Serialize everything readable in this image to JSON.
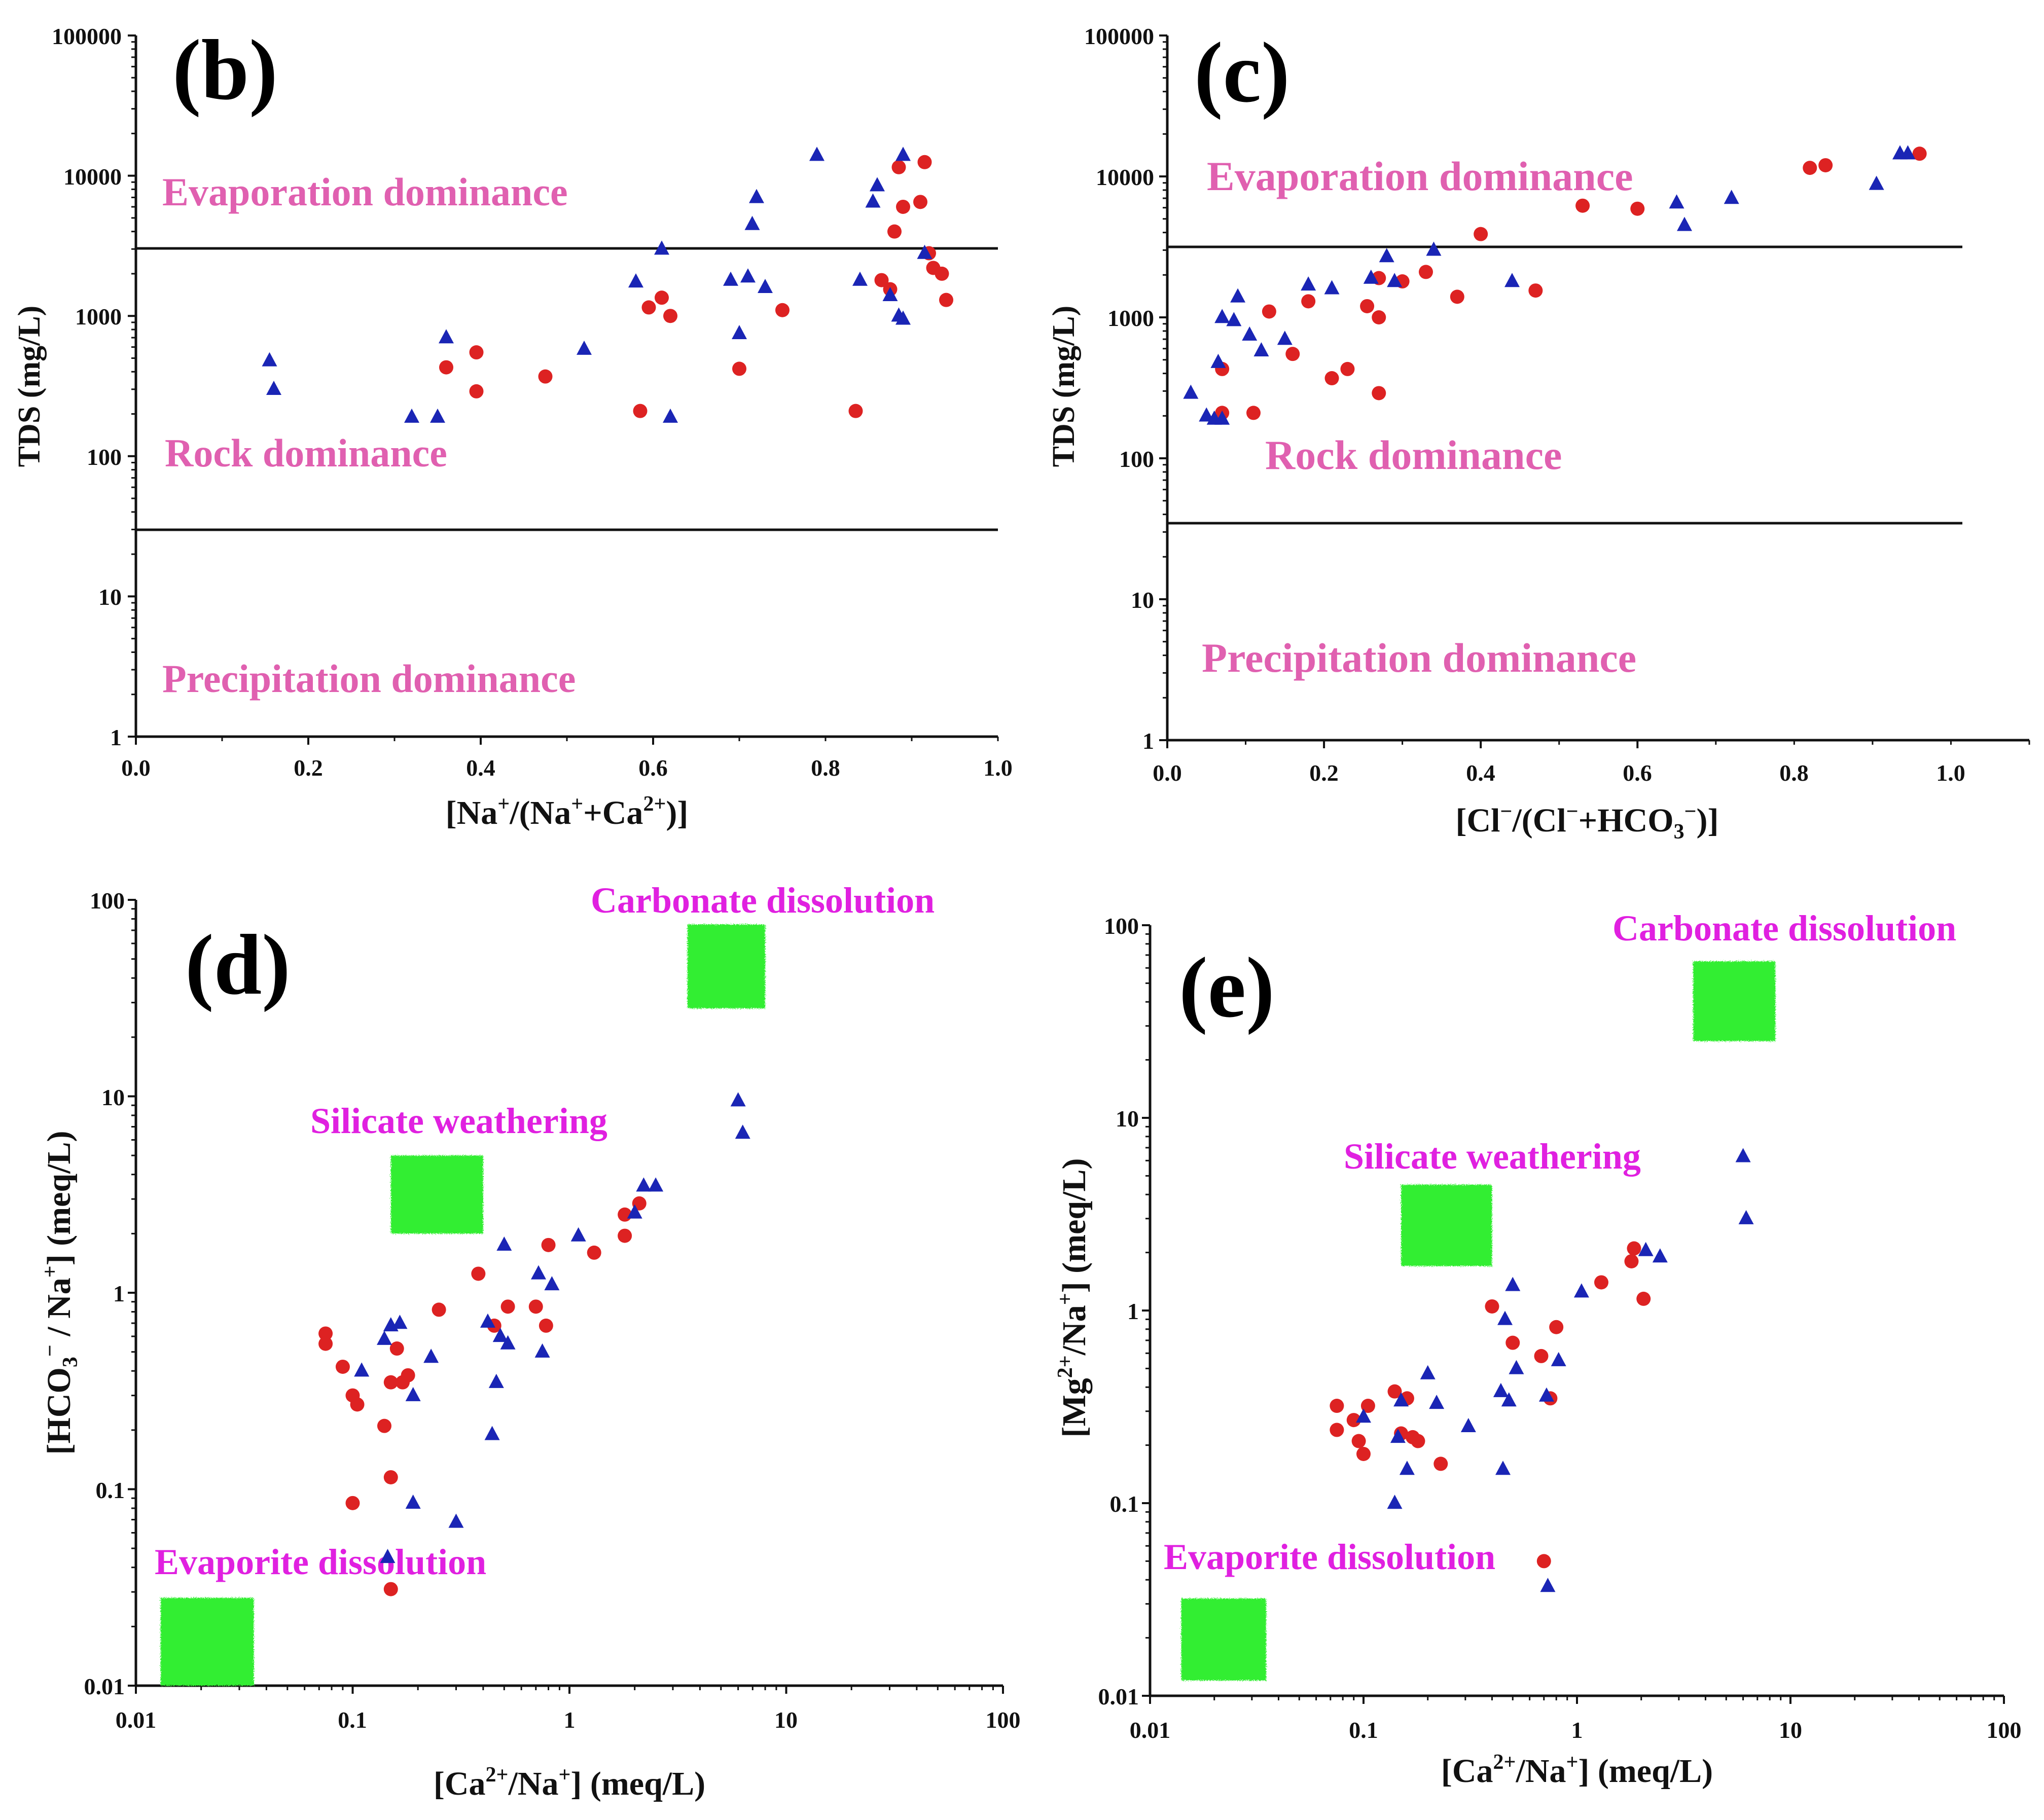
{
  "colors": {
    "region_text_b": "#e060b0",
    "region_text_d": "#e020e0",
    "series_red": "#dd2222",
    "series_blue": "#1a25b5",
    "green_box": "#33ee33",
    "axis": "#111111"
  },
  "chart_data": [
    {
      "id": "b",
      "type": "scatter",
      "panel_letter": "(b)",
      "xlabel": "[Na+/(Na++Ca2+)]",
      "ylabel": "TDS (mg/L)",
      "xscale": "linear",
      "yscale": "log",
      "xlim": [
        0,
        1
      ],
      "ylim": [
        1,
        100000
      ],
      "xticks": [
        "0.0",
        "0.2",
        "0.4",
        "0.6",
        "0.8",
        "1.0"
      ],
      "yticks": [
        "1",
        "10",
        "100",
        "1000",
        "10000",
        "100000"
      ],
      "hlines": [
        3000,
        30
      ],
      "regions": [
        "Evaporation dominance",
        "Rock dominance",
        "Precipitation dominance"
      ],
      "series": [
        {
          "name": "red",
          "marker": "circle",
          "points": [
            [
              0.36,
              430
            ],
            [
              0.395,
              550
            ],
            [
              0.395,
              290
            ],
            [
              0.475,
              370
            ],
            [
              0.585,
              210
            ],
            [
              0.595,
              1150
            ],
            [
              0.61,
              1350
            ],
            [
              0.62,
              1000
            ],
            [
              0.7,
              420
            ],
            [
              0.75,
              1100
            ],
            [
              0.835,
              210
            ],
            [
              0.865,
              1800
            ],
            [
              0.875,
              1550
            ],
            [
              0.88,
              4000
            ],
            [
              0.885,
              11500
            ],
            [
              0.89,
              6000
            ],
            [
              0.91,
              6500
            ],
            [
              0.915,
              12500
            ],
            [
              0.92,
              2800
            ],
            [
              0.925,
              2200
            ],
            [
              0.935,
              2000
            ],
            [
              0.94,
              1300
            ]
          ]
        },
        {
          "name": "blue",
          "marker": "triangle",
          "points": [
            [
              0.155,
              480
            ],
            [
              0.16,
              300
            ],
            [
              0.32,
              190
            ],
            [
              0.35,
              190
            ],
            [
              0.36,
              700
            ],
            [
              0.52,
              580
            ],
            [
              0.58,
              1750
            ],
            [
              0.61,
              3000
            ],
            [
              0.62,
              190
            ],
            [
              0.69,
              1800
            ],
            [
              0.7,
              750
            ],
            [
              0.71,
              1900
            ],
            [
              0.715,
              4500
            ],
            [
              0.72,
              7000
            ],
            [
              0.73,
              1600
            ],
            [
              0.79,
              14000
            ],
            [
              0.84,
              1800
            ],
            [
              0.855,
              6500
            ],
            [
              0.86,
              8500
            ],
            [
              0.875,
              1400
            ],
            [
              0.885,
              1000
            ],
            [
              0.89,
              950
            ],
            [
              0.89,
              14000
            ],
            [
              0.915,
              2800
            ]
          ]
        }
      ]
    },
    {
      "id": "c",
      "type": "scatter",
      "panel_letter": "(c)",
      "xlabel": "[Cl−/(Cl−+HCO3−)]",
      "ylabel": "TDS (mg/L)",
      "xscale": "linear",
      "yscale": "log",
      "xlim": [
        0,
        1.1
      ],
      "ylim": [
        1,
        100000
      ],
      "xticks": [
        "0.0",
        "0.2",
        "0.4",
        "0.6",
        "0.8",
        "1.0"
      ],
      "yticks": [
        "1",
        "10",
        "100",
        "1000",
        "10000",
        "100000"
      ],
      "hlines": [
        3000,
        35
      ],
      "regions": [
        "Evaporation dominance",
        "Rock dominance",
        "Precipitation dominance"
      ],
      "series": [
        {
          "name": "red",
          "marker": "circle",
          "points": [
            [
              0.07,
              430
            ],
            [
              0.07,
              210
            ],
            [
              0.11,
              210
            ],
            [
              0.13,
              1100
            ],
            [
              0.16,
              550
            ],
            [
              0.18,
              1300
            ],
            [
              0.21,
              370
            ],
            [
              0.23,
              430
            ],
            [
              0.255,
              1200
            ],
            [
              0.27,
              1000
            ],
            [
              0.27,
              1900
            ],
            [
              0.27,
              290
            ],
            [
              0.3,
              1800
            ],
            [
              0.33,
              2100
            ],
            [
              0.37,
              1400
            ],
            [
              0.4,
              3900
            ],
            [
              0.47,
              1550
            ],
            [
              0.53,
              6200
            ],
            [
              0.6,
              5900
            ],
            [
              0.82,
              11500
            ],
            [
              0.84,
              12000
            ],
            [
              0.96,
              14500
            ]
          ]
        },
        {
          "name": "blue",
          "marker": "triangle",
          "points": [
            [
              0.03,
              290
            ],
            [
              0.05,
              200
            ],
            [
              0.06,
              190
            ],
            [
              0.065,
              480
            ],
            [
              0.07,
              1000
            ],
            [
              0.07,
              190
            ],
            [
              0.085,
              950
            ],
            [
              0.09,
              1400
            ],
            [
              0.105,
              750
            ],
            [
              0.12,
              580
            ],
            [
              0.15,
              700
            ],
            [
              0.18,
              1700
            ],
            [
              0.21,
              1600
            ],
            [
              0.26,
              1900
            ],
            [
              0.28,
              2700
            ],
            [
              0.29,
              1800
            ],
            [
              0.34,
              3000
            ],
            [
              0.44,
              1800
            ],
            [
              0.65,
              6500
            ],
            [
              0.66,
              4500
            ],
            [
              0.72,
              7000
            ],
            [
              0.905,
              8800
            ],
            [
              0.935,
              14500
            ],
            [
              0.945,
              14500
            ]
          ]
        }
      ]
    },
    {
      "id": "d",
      "type": "scatter",
      "panel_letter": "(d)",
      "xlabel": "[Ca2+/Na+] (meq/L)",
      "ylabel": "[HCO3− / Na+] (meq/L)",
      "xscale": "log",
      "yscale": "log",
      "xlim": [
        0.01,
        100
      ],
      "ylim": [
        0.01,
        100
      ],
      "xticks": [
        "0.01",
        "0.1",
        "1",
        "10",
        "100"
      ],
      "yticks": [
        "0.01",
        "0.1",
        "1",
        "10",
        "100"
      ],
      "boxes": [
        {
          "label": "Carbonate dissolution",
          "x": [
            3.5,
            8
          ],
          "y": [
            28,
            75
          ]
        },
        {
          "label": "Silicate weathering",
          "x": [
            0.15,
            0.4
          ],
          "y": [
            2,
            5
          ]
        },
        {
          "label": "Evaporite dissolution",
          "x": [
            0.013,
            0.035
          ],
          "y": [
            0.01,
            0.028
          ]
        }
      ],
      "series": [
        {
          "name": "red",
          "marker": "circle",
          "points": [
            [
              0.075,
              0.62
            ],
            [
              0.075,
              0.55
            ],
            [
              0.09,
              0.42
            ],
            [
              0.1,
              0.085
            ],
            [
              0.1,
              0.3
            ],
            [
              0.105,
              0.27
            ],
            [
              0.14,
              0.21
            ],
            [
              0.15,
              0.031
            ],
            [
              0.15,
              0.115
            ],
            [
              0.15,
              0.35
            ],
            [
              0.16,
              0.52
            ],
            [
              0.17,
              0.35
            ],
            [
              0.18,
              0.38
            ],
            [
              0.25,
              0.82
            ],
            [
              0.38,
              1.25
            ],
            [
              0.45,
              0.68
            ],
            [
              0.52,
              0.85
            ],
            [
              0.7,
              0.85
            ],
            [
              0.78,
              0.68
            ],
            [
              0.8,
              1.75
            ],
            [
              1.3,
              1.6
            ],
            [
              1.8,
              2.5
            ],
            [
              1.8,
              1.95
            ],
            [
              2.1,
              2.85
            ]
          ]
        },
        {
          "name": "blue",
          "marker": "triangle",
          "points": [
            [
              0.11,
              0.4
            ],
            [
              0.14,
              0.58
            ],
            [
              0.145,
              0.045
            ],
            [
              0.15,
              0.68
            ],
            [
              0.165,
              0.7
            ],
            [
              0.19,
              0.3
            ],
            [
              0.19,
              0.085
            ],
            [
              0.23,
              0.47
            ],
            [
              0.3,
              0.068
            ],
            [
              0.42,
              0.71
            ],
            [
              0.44,
              0.19
            ],
            [
              0.46,
              0.35
            ],
            [
              0.48,
              0.6
            ],
            [
              0.5,
              1.75
            ],
            [
              0.52,
              0.55
            ],
            [
              0.72,
              1.25
            ],
            [
              0.75,
              0.5
            ],
            [
              0.83,
              1.1
            ],
            [
              1.1,
              1.95
            ],
            [
              2.0,
              2.55
            ],
            [
              2.2,
              3.5
            ],
            [
              2.5,
              3.5
            ],
            [
              6.0,
              9.5
            ],
            [
              6.3,
              6.5
            ]
          ]
        }
      ]
    },
    {
      "id": "e",
      "type": "scatter",
      "panel_letter": "(e)",
      "xlabel": "[Ca2+/Na+] (meq/L)",
      "ylabel": "[Mg2+/Na+] (meq/L)",
      "xscale": "log",
      "yscale": "log",
      "xlim": [
        0.01,
        100
      ],
      "ylim": [
        0.01,
        100
      ],
      "xticks": [
        "0.01",
        "0.1",
        "1",
        "10",
        "100"
      ],
      "yticks": [
        "0.01",
        "0.1",
        "1",
        "10",
        "100"
      ],
      "boxes": [
        {
          "label": "Carbonate dissolution",
          "x": [
            3.5,
            8.5
          ],
          "y": [
            25,
            65
          ]
        },
        {
          "label": "Silicate weathering",
          "x": [
            0.15,
            0.4
          ],
          "y": [
            1.7,
            4.5
          ]
        },
        {
          "label": "Evaporite dissolution",
          "x": [
            0.014,
            0.035
          ],
          "y": [
            0.012,
            0.032
          ]
        }
      ],
      "series": [
        {
          "name": "red",
          "marker": "circle",
          "points": [
            [
              0.075,
              0.32
            ],
            [
              0.075,
              0.24
            ],
            [
              0.09,
              0.27
            ],
            [
              0.095,
              0.21
            ],
            [
              0.1,
              0.18
            ],
            [
              0.105,
              0.32
            ],
            [
              0.14,
              0.38
            ],
            [
              0.15,
              0.23
            ],
            [
              0.16,
              0.35
            ],
            [
              0.17,
              0.22
            ],
            [
              0.18,
              0.21
            ],
            [
              0.23,
              0.16
            ],
            [
              0.4,
              1.05
            ],
            [
              0.5,
              0.68
            ],
            [
              0.68,
              0.58
            ],
            [
              0.7,
              0.05
            ],
            [
              0.75,
              0.35
            ],
            [
              0.8,
              0.82
            ],
            [
              1.3,
              1.4
            ],
            [
              1.8,
              1.8
            ],
            [
              1.85,
              2.1
            ],
            [
              2.05,
              1.15
            ]
          ]
        },
        {
          "name": "blue",
          "marker": "triangle",
          "points": [
            [
              0.1,
              0.28
            ],
            [
              0.14,
              0.1
            ],
            [
              0.145,
              0.22
            ],
            [
              0.15,
              0.34
            ],
            [
              0.16,
              0.15
            ],
            [
              0.2,
              0.47
            ],
            [
              0.22,
              0.33
            ],
            [
              0.31,
              0.25
            ],
            [
              0.44,
              0.38
            ],
            [
              0.45,
              0.15
            ],
            [
              0.46,
              0.9
            ],
            [
              0.48,
              0.34
            ],
            [
              0.5,
              1.35
            ],
            [
              0.52,
              0.5
            ],
            [
              0.72,
              0.36
            ],
            [
              0.73,
              0.037
            ],
            [
              0.82,
              0.55
            ],
            [
              1.05,
              1.25
            ],
            [
              2.1,
              2.05
            ],
            [
              2.45,
              1.9
            ],
            [
              6.0,
              6.3
            ],
            [
              6.2,
              3.0
            ]
          ]
        }
      ]
    }
  ]
}
